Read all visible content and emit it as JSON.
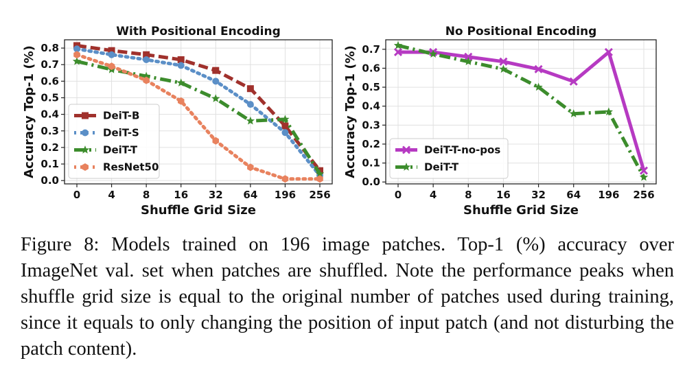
{
  "chart_data": [
    {
      "type": "line",
      "title": "With Positional Encoding",
      "xlabel": "Shuffle Grid Size",
      "ylabel": "Accuracy Top-1 (%)",
      "categories": [
        "0",
        "4",
        "8",
        "16",
        "32",
        "64",
        "196",
        "256"
      ],
      "yticks": [
        "0.0",
        "0.1",
        "0.2",
        "0.3",
        "0.4",
        "0.5",
        "0.6",
        "0.7",
        "0.8"
      ],
      "ylim": [
        -0.02,
        0.85
      ],
      "grid": true,
      "legend_position": "lower-left",
      "series": [
        {
          "name": "DeiT-B",
          "color": "#a0312c",
          "style": "dashed",
          "marker": "square",
          "values": [
            0.815,
            0.785,
            0.76,
            0.73,
            0.665,
            0.555,
            0.33,
            0.06
          ]
        },
        {
          "name": "DeiT-S",
          "color": "#5b8fc7",
          "style": "dotted",
          "marker": "circle",
          "values": [
            0.795,
            0.76,
            0.73,
            0.695,
            0.6,
            0.46,
            0.29,
            0.03
          ]
        },
        {
          "name": "DeiT-T",
          "color": "#3c8c2c",
          "style": "dashdot",
          "marker": "star",
          "values": [
            0.72,
            0.67,
            0.63,
            0.59,
            0.495,
            0.36,
            0.37,
            0.04
          ]
        },
        {
          "name": "ResNet50",
          "color": "#e8825e",
          "style": "dotted",
          "marker": "hexagon",
          "values": [
            0.76,
            0.69,
            0.605,
            0.48,
            0.24,
            0.08,
            0.01,
            0.01
          ]
        }
      ]
    },
    {
      "type": "line",
      "title": "No Positional Encoding",
      "xlabel": "Shuffle Grid Size",
      "ylabel": "Accuracy Top-1 (%)",
      "categories": [
        "0",
        "4",
        "8",
        "16",
        "32",
        "64",
        "196",
        "256"
      ],
      "yticks": [
        "0.0",
        "0.1",
        "0.2",
        "0.3",
        "0.4",
        "0.5",
        "0.6",
        "0.7"
      ],
      "ylim": [
        -0.01,
        0.75
      ],
      "grid": true,
      "legend_position": "lower-left",
      "series": [
        {
          "name": "DeiT-T-no-pos",
          "color": "#b63ac2",
          "style": "solid",
          "marker": "x",
          "values": [
            0.685,
            0.685,
            0.66,
            0.635,
            0.595,
            0.53,
            0.685,
            0.06
          ]
        },
        {
          "name": "DeiT-T",
          "color": "#3c8c2c",
          "style": "dashdot",
          "marker": "star",
          "values": [
            0.72,
            0.675,
            0.635,
            0.595,
            0.5,
            0.36,
            0.37,
            0.025
          ]
        }
      ]
    }
  ],
  "caption": "Figure 8: Models trained on 196 image patches. Top-1 (%) accuracy over ImageNet val. set when patches are shuffled. Note the performance peaks when shuffle grid size is equal to the original number of patches used during training, since it equals to only changing the position of input patch (and not disturbing the patch content)."
}
